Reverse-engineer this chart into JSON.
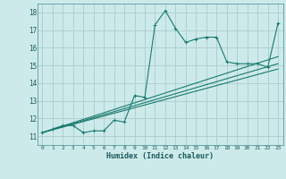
{
  "xlabel": "Humidex (Indice chaleur)",
  "ylabel": "",
  "background_color": "#cdeaea",
  "grid_color": "#b0d0d0",
  "line_color": "#1a7a6e",
  "xlim": [
    -0.5,
    23.5
  ],
  "ylim": [
    10.5,
    18.5
  ],
  "xticks": [
    0,
    1,
    2,
    3,
    4,
    5,
    6,
    7,
    8,
    9,
    10,
    11,
    12,
    13,
    14,
    15,
    16,
    17,
    18,
    19,
    20,
    21,
    22,
    23
  ],
  "yticks": [
    11,
    12,
    13,
    14,
    15,
    16,
    17,
    18
  ],
  "series1_x": [
    0,
    1,
    2,
    3,
    4,
    5,
    6,
    7,
    8,
    9,
    10,
    11,
    12,
    13,
    14,
    15,
    16,
    17,
    18,
    19,
    20,
    21,
    22,
    23
  ],
  "series1_y": [
    11.2,
    11.4,
    11.6,
    11.6,
    11.2,
    11.3,
    11.3,
    11.9,
    11.8,
    13.3,
    13.2,
    17.3,
    18.1,
    17.1,
    16.3,
    16.5,
    16.6,
    16.6,
    15.2,
    15.1,
    15.1,
    15.1,
    14.9,
    17.4
  ],
  "series2_x": [
    0,
    23
  ],
  "series2_y": [
    11.2,
    15.5
  ],
  "series3_x": [
    0,
    23
  ],
  "series3_y": [
    11.2,
    15.1
  ],
  "series4_x": [
    0,
    23
  ],
  "series4_y": [
    11.2,
    14.8
  ]
}
